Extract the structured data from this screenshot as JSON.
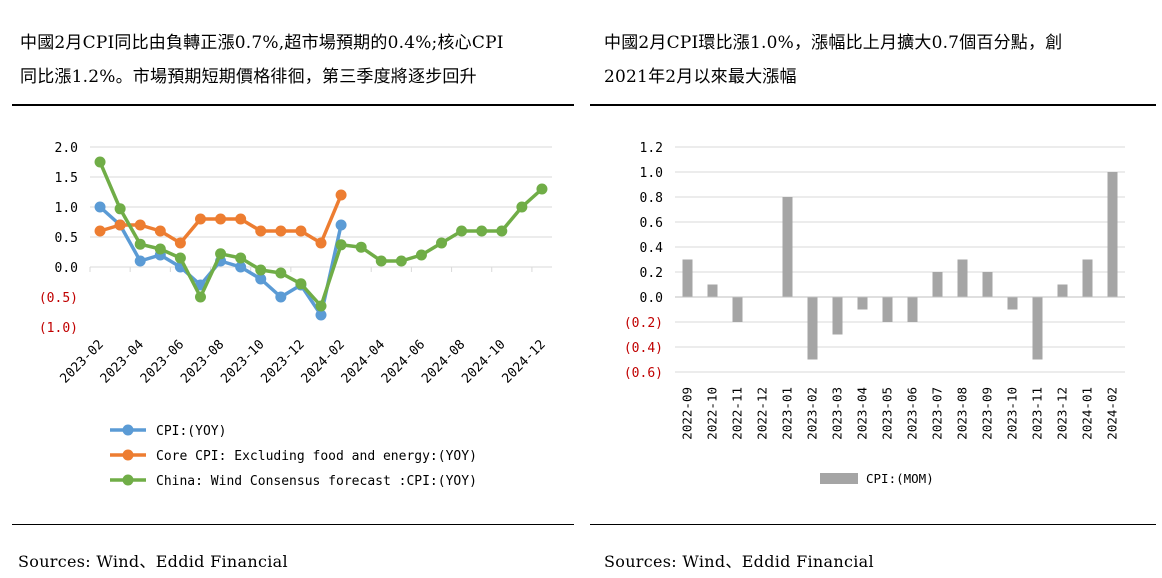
{
  "left_panel": {
    "title_line1": "中國2月CPI同比由負轉正漲0.7%,超市場預期的0.4%;核心CPI",
    "title_line2": "同比漲1.2%。市場預期短期價格徘徊，第三季度將逐步回升",
    "source": "Sources: Wind、Eddid Financial"
  },
  "right_panel": {
    "title_line1": "中國2月CPI環比漲1.0%，漲幅比上月擴大0.7個百分點，創",
    "title_line2": "2021年2月以來最大漲幅",
    "source": "Sources: Wind、Eddid Financial"
  },
  "colors": {
    "cpi_yoy": "#5B9BD5",
    "core_cpi": "#ED7D31",
    "forecast": "#70AD47",
    "mom_bar": "#A5A5A5",
    "negative_label": "#C00000"
  },
  "chart_data": [
    {
      "type": "line",
      "x": [
        "2023-02",
        "2023-03",
        "2023-04",
        "2023-05",
        "2023-06",
        "2023-07",
        "2023-08",
        "2023-09",
        "2023-10",
        "2023-11",
        "2023-12",
        "2024-01",
        "2024-02",
        "2024-03",
        "2024-04",
        "2024-05",
        "2024-06",
        "2024-07",
        "2024-08",
        "2024-09",
        "2024-10",
        "2024-11",
        "2024-12"
      ],
      "x_tick_labels": [
        "2023-02",
        "2023-04",
        "2023-06",
        "2023-08",
        "2023-10",
        "2023-12",
        "2024-02",
        "2024-04",
        "2024-06",
        "2024-08",
        "2024-10",
        "2024-12"
      ],
      "ylim": [
        -1.0,
        2.0
      ],
      "y_ticks": [
        2.0,
        1.5,
        1.0,
        0.5,
        0.0,
        -0.5,
        -1.0
      ],
      "y_tick_labels": [
        "2.0",
        "1.5",
        "1.0",
        "0.5",
        "0.0",
        "(0.5)",
        "(1.0)"
      ],
      "series": [
        {
          "name": "CPI:(YOY)",
          "color": "#5B9BD5",
          "values": [
            1.0,
            0.7,
            0.1,
            0.2,
            0.0,
            -0.3,
            0.1,
            0.0,
            -0.2,
            -0.5,
            -0.3,
            -0.8,
            0.7,
            null,
            null,
            null,
            null,
            null,
            null,
            null,
            null,
            null,
            null
          ]
        },
        {
          "name": "Core CPI: Excluding food and energy:(YOY)",
          "color": "#ED7D31",
          "values": [
            0.6,
            0.7,
            0.7,
            0.6,
            0.4,
            0.8,
            0.8,
            0.8,
            0.6,
            0.6,
            0.6,
            0.4,
            1.2,
            null,
            null,
            null,
            null,
            null,
            null,
            null,
            null,
            null,
            null
          ]
        },
        {
          "name": "China: Wind Consensus forecast :CPI:(YOY)",
          "color": "#70AD47",
          "values": [
            1.75,
            0.97,
            0.38,
            0.3,
            0.15,
            -0.5,
            0.22,
            0.15,
            -0.05,
            -0.1,
            -0.28,
            -0.65,
            0.37,
            0.33,
            0.1,
            0.1,
            0.2,
            0.4,
            0.6,
            0.6,
            0.6,
            1.0,
            1.3
          ]
        }
      ],
      "grid": true,
      "legend": "bottom"
    },
    {
      "type": "bar",
      "categories": [
        "2022-09",
        "2022-10",
        "2022-11",
        "2022-12",
        "2023-01",
        "2023-02",
        "2023-03",
        "2023-04",
        "2023-05",
        "2023-06",
        "2023-07",
        "2023-08",
        "2023-09",
        "2023-10",
        "2023-11",
        "2023-12",
        "2024-01",
        "2024-02"
      ],
      "values": [
        0.3,
        0.1,
        -0.2,
        0.0,
        0.8,
        -0.5,
        -0.3,
        -0.1,
        -0.2,
        -0.2,
        0.2,
        0.3,
        0.2,
        -0.1,
        -0.5,
        0.1,
        0.3,
        1.0
      ],
      "ylim": [
        -0.6,
        1.2
      ],
      "y_ticks": [
        1.2,
        1.0,
        0.8,
        0.6,
        0.4,
        0.2,
        0.0,
        -0.2,
        -0.4,
        -0.6
      ],
      "y_tick_labels": [
        "1.2",
        "1.0",
        "0.8",
        "0.6",
        "0.4",
        "0.2",
        "0.0",
        "(0.2)",
        "(0.4)",
        "(0.6)"
      ],
      "series_name": "CPI:(MOM)",
      "color": "#A5A5A5",
      "grid": true,
      "legend": "bottom"
    }
  ]
}
